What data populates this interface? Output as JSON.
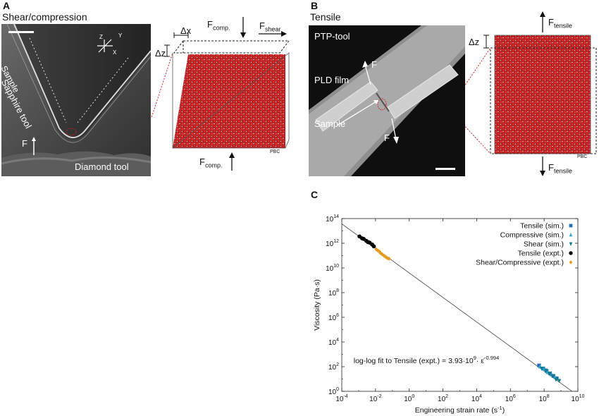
{
  "panel_a": {
    "letter": "A",
    "title": "Shear/compression",
    "labels": {
      "sapphire_tool": "Sapphire tool",
      "sample": "Sample",
      "diamond_tool": "Diamond tool",
      "force": "F"
    },
    "axes": {
      "z": "Z",
      "y": "Y",
      "x": "X"
    },
    "schematic": {
      "dx": "Δx",
      "dz": "Δz",
      "f_comp_top": "F",
      "f_comp_top_sub": "comp.",
      "f_shear": "F",
      "f_shear_sub": "shear",
      "f_comp_bottom": "F",
      "f_comp_bottom_sub": "comp.",
      "pbc": "PBC"
    }
  },
  "panel_b": {
    "letter": "B",
    "title": "Tensile",
    "labels": {
      "ptp_tool": "PTP-tool",
      "pld_film": "PLD film",
      "sample": "Sample",
      "force_top": "F",
      "force_bottom": "F"
    },
    "schematic": {
      "dz": "Δz",
      "f_top": "F",
      "f_top_sub": "tensile",
      "f_bottom": "F",
      "f_bottom_sub": "tensile",
      "pbc": "PBC"
    }
  },
  "panel_c": {
    "letter": "C"
  },
  "colors": {
    "tensile_sim": "#1f6fb2",
    "compressive_sim": "#35a9d6",
    "shear_sim": "#147d8c",
    "tensile_expt": "#000000",
    "shear_comp_expt": "#e69b1f",
    "atom_red": "#cc2222"
  },
  "chart_data": {
    "type": "scatter",
    "xlabel": "Engineering strain rate (s",
    "xlabel_sup": "-1",
    "xlabel_end": ")",
    "ylabel": "Viscosity (Pa·s)",
    "xlim_log10": [
      -4,
      10
    ],
    "ylim_log10": [
      0,
      14
    ],
    "x_ticks": [
      {
        "base": "10",
        "exp": "-4"
      },
      {
        "base": "10",
        "exp": "-2"
      },
      {
        "base": "10",
        "exp": "0"
      },
      {
        "base": "10",
        "exp": "2"
      },
      {
        "base": "10",
        "exp": "4"
      },
      {
        "base": "10",
        "exp": "6"
      },
      {
        "base": "10",
        "exp": "8"
      },
      {
        "base": "10",
        "exp": "10"
      }
    ],
    "y_ticks": [
      {
        "base": "10",
        "exp": "0"
      },
      {
        "base": "10",
        "exp": "2"
      },
      {
        "base": "10",
        "exp": "4"
      },
      {
        "base": "10",
        "exp": "6"
      },
      {
        "base": "10",
        "exp": "8"
      },
      {
        "base": "10",
        "exp": "10"
      },
      {
        "base": "10",
        "exp": "12"
      },
      {
        "base": "10",
        "exp": "14"
      }
    ],
    "fit": {
      "prefactor": 3930000000.0,
      "exponent": -0.994,
      "label_main": "log-log fit to Tensile (expt.) = 3.93·10",
      "label_sup1": "9",
      "label_mid": "· ε̇",
      "label_sup2": "-0.994"
    },
    "series": [
      {
        "name": "Tensile (sim.)",
        "marker": "square",
        "color": "#1f6fb2",
        "log_x": [
          7.7,
          7.95,
          8.15,
          8.35,
          8.55,
          8.75
        ],
        "log_y": [
          2.1,
          1.85,
          1.65,
          1.45,
          1.25,
          1.05
        ]
      },
      {
        "name": "Compressive (sim.)",
        "marker": "triangle-up",
        "color": "#35a9d6",
        "log_x": [
          7.75,
          8.0,
          8.2,
          8.45,
          8.65
        ],
        "log_y": [
          2.0,
          1.8,
          1.55,
          1.35,
          1.15
        ]
      },
      {
        "name": "Shear (sim.)",
        "marker": "triangle-down",
        "color": "#147d8c",
        "log_x": [
          7.85,
          8.1,
          8.3,
          8.5,
          8.7,
          8.9
        ],
        "log_y": [
          1.85,
          1.7,
          1.45,
          1.25,
          0.95,
          0.85
        ]
      },
      {
        "name": "Tensile (expt.)",
        "marker": "circle",
        "color": "#000000",
        "log_x": [
          -2.95,
          -2.8,
          -2.7,
          -2.55,
          -2.45,
          -2.35,
          -2.2,
          -2.1
        ],
        "log_y": [
          12.55,
          12.4,
          12.35,
          12.2,
          12.1,
          12.05,
          11.9,
          11.75
        ]
      },
      {
        "name": "Shear/Compressive (expt.)",
        "marker": "diamond",
        "color": "#e69b1f",
        "log_x": [
          -1.95,
          -1.85,
          -1.75,
          -1.7,
          -1.6,
          -1.5,
          -1.4,
          -1.3,
          -1.2
        ],
        "log_y": [
          11.5,
          11.4,
          11.3,
          11.2,
          11.1,
          11.0,
          10.9,
          10.8,
          10.75
        ]
      }
    ]
  }
}
